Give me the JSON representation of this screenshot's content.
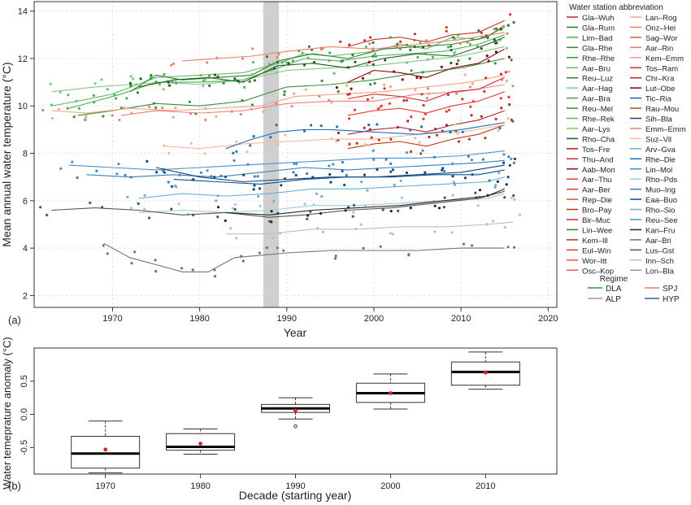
{
  "figure": {
    "panel_a_tag": "(a)",
    "panel_b_tag": "(b)"
  },
  "chart_data": [
    {
      "type": "line",
      "panel": "(a)",
      "xlabel": "Year",
      "ylabel": "Mean annual water temperature (°C)",
      "xlim": [
        1961,
        2021
      ],
      "ylim": [
        1.5,
        14.4
      ],
      "x_ticks": [
        1970,
        1980,
        1990,
        2000,
        2010,
        2020
      ],
      "y_ticks": [
        2,
        4,
        6,
        8,
        10,
        12,
        14
      ],
      "grid": true,
      "shaded_band": [
        1987.3,
        1989.1
      ],
      "legend_title": "Water station abbreviation",
      "legend_col1": [
        "Gla–Wuh",
        "Gla–Rum",
        "Lim–Bad",
        "Gla–Rhe",
        "Rhe–Rhe",
        "Aar–Bru",
        "Reu–Luz",
        "Aar–Hag",
        "Aar–Bra",
        "Reu–Mel",
        "Rhe–Rek",
        "Aar–Lys",
        "Rho–Cha",
        "Tos–Fre",
        "Thu–And",
        "Aab–Mon",
        "Aar–Thu",
        "Aar–Ber",
        "Rep–Die",
        "Bro–Pay",
        "Bir–Muc",
        "Lin–Wee",
        "Kem–Ill",
        "Eul–Win",
        "Wor–Itt",
        "Osc–Kop"
      ],
      "legend_col1_colors": [
        "#c62828",
        "#1b7a2f",
        "#4caf50",
        "#2e8b3e",
        "#3a8f3a",
        "#66bb6a",
        "#2e7d32",
        "#81c784",
        "#43a047",
        "#388e3c",
        "#5cb85c",
        "#8bc34a",
        "#1b5e20",
        "#b71c1c",
        "#c0392b",
        "#8b1a1a",
        "#e53935",
        "#d84315",
        "#f44336",
        "#bf360c",
        "#d32f2f",
        "#2e7d32",
        "#c62828",
        "#e53935",
        "#f4511e",
        "#ef5350"
      ],
      "legend_col2": [
        "Lan–Rog",
        "Onz–Hei",
        "Sag–Wor",
        "Aar–Rin",
        "Kem–Emm",
        "Tos–Ram",
        "Chr–Kra",
        "Lut–Obe",
        "Tic–Ria",
        "Rau–Mou",
        "Sih–Bla",
        "Emm–Emm",
        "Suz–Vil",
        "Arv–Gva",
        "Rhe–Die",
        "Lin–Mol",
        "Rho–Pds",
        "Muo–Ing",
        "Eaa–Buo",
        "Rho–Sio",
        "Reu–See",
        "Kan–Fru",
        "Aar–Bri",
        "Lus–Gst",
        "Inn–Sch",
        "Lon–Bla"
      ],
      "legend_col2_colors": [
        "#f4a582",
        "#e8806a",
        "#d6604d",
        "#e57373",
        "#ef9a9a",
        "#c0392b",
        "#b22222",
        "#8b0000",
        "#1f5fa8",
        "#a0522d",
        "#1c3f6e",
        "#f08080",
        "#f5b7a0",
        "#6baed6",
        "#2171b5",
        "#4292c6",
        "#9ecae1",
        "#3182bd",
        "#08519c",
        "#6baed6",
        "#4a90c8",
        "#252525",
        "#737373",
        "#525252",
        "#bdbdbd",
        "#969696"
      ],
      "regime_title": "Regime",
      "regimes": [
        {
          "name": "DLA",
          "color": "#2ca02c"
        },
        {
          "name": "SPJ",
          "color": "#f07b63"
        },
        {
          "name": "ALP",
          "color": "#999999"
        },
        {
          "name": "HYP",
          "color": "#2166ac"
        }
      ],
      "series": [
        {
          "regime": "DLA",
          "color": "#66bb6a",
          "x": [
            1963,
            1966,
            1970,
            1975,
            1980,
            1985,
            1989,
            1992,
            1995,
            2000,
            2003,
            2006,
            2009,
            2012,
            2015
          ],
          "y": [
            10.0,
            10.2,
            10.5,
            11.2,
            11.3,
            11.4,
            11.8,
            12.2,
            12.1,
            12.3,
            12.6,
            12.4,
            12.9,
            12.8,
            13.3
          ]
        },
        {
          "regime": "DLA",
          "color": "#4caf50",
          "x": [
            1965,
            1968,
            1971,
            1975,
            1980,
            1985,
            1989,
            1992,
            1996,
            2000,
            2004,
            2008,
            2012,
            2015
          ],
          "y": [
            9.9,
            10.2,
            10.5,
            11.0,
            11.0,
            11.1,
            11.6,
            12.0,
            11.9,
            12.1,
            12.2,
            12.3,
            12.6,
            13.0
          ]
        },
        {
          "regime": "DLA",
          "color": "#2e7d32",
          "x": [
            1972,
            1975,
            1978,
            1982,
            1986,
            1989,
            1993,
            1997,
            2001,
            2005,
            2009,
            2013,
            2015
          ],
          "y": [
            10.6,
            11.3,
            11.1,
            11.2,
            11.3,
            11.9,
            12.2,
            12.0,
            12.4,
            12.5,
            12.6,
            12.9,
            13.4
          ]
        },
        {
          "regime": "DLA",
          "color": "#81c784",
          "x": [
            1963,
            1968,
            1972,
            1976,
            1980,
            1985,
            1990,
            1995,
            2000,
            2005,
            2010,
            2015
          ],
          "y": [
            10.6,
            10.8,
            10.9,
            11.0,
            10.9,
            11.1,
            11.5,
            11.6,
            11.7,
            11.9,
            12.1,
            12.5
          ]
        },
        {
          "regime": "DLA",
          "color": "#388e3c",
          "x": [
            1966,
            1970,
            1975,
            1980,
            1985,
            1990,
            1995,
            2000,
            2005,
            2010,
            2015
          ],
          "y": [
            9.6,
            9.8,
            10.1,
            10.0,
            10.2,
            10.8,
            10.9,
            11.1,
            11.4,
            11.6,
            12.0
          ]
        },
        {
          "regime": "DLA",
          "color": "#1b5e20",
          "x": [
            1973,
            1977,
            1981,
            1985,
            1989,
            1993,
            1997,
            2001,
            2005,
            2009,
            2013,
            2015
          ],
          "y": [
            10.8,
            11.1,
            11.2,
            11.0,
            11.7,
            11.8,
            11.6,
            12.0,
            12.2,
            12.1,
            12.6,
            12.9
          ]
        },
        {
          "regime": "SPJ",
          "color": "#f4a582",
          "x": [
            1963,
            1967,
            1972,
            1977,
            1982,
            1987,
            1991,
            1996,
            2001,
            2006,
            2011,
            2015
          ],
          "y": [
            9.8,
            9.7,
            9.9,
            9.8,
            9.9,
            10.0,
            10.4,
            10.5,
            10.6,
            10.8,
            11.0,
            11.3
          ]
        },
        {
          "regime": "SPJ",
          "color": "#e8806a",
          "x": [
            1978,
            1982,
            1986,
            1990,
            1995,
            2000,
            2005,
            2010,
            2015
          ],
          "y": [
            11.9,
            12.0,
            12.1,
            12.3,
            12.5,
            12.4,
            12.6,
            12.8,
            13.1
          ]
        },
        {
          "regime": "SPJ",
          "color": "#f08080",
          "x": [
            1971,
            1975,
            1980,
            1985,
            1990,
            1995,
            2000,
            2005,
            2010,
            2015
          ],
          "y": [
            9.6,
            9.8,
            9.7,
            9.8,
            10.1,
            10.2,
            10.2,
            10.5,
            10.6,
            10.9
          ]
        },
        {
          "regime": "SPJ",
          "color": "#c0392b",
          "x": [
            1997,
            2000,
            2003,
            2006,
            2009,
            2012,
            2015
          ],
          "y": [
            12.5,
            12.8,
            12.9,
            12.7,
            13.0,
            13.1,
            13.6
          ]
        },
        {
          "regime": "SPJ",
          "color": "#8b0000",
          "x": [
            1997,
            2000,
            2003,
            2006,
            2009,
            2012,
            2015
          ],
          "y": [
            11.0,
            11.5,
            11.4,
            11.2,
            11.6,
            11.8,
            12.4
          ]
        },
        {
          "regime": "SPJ",
          "color": "#d32f2f",
          "x": [
            1997,
            2000,
            2003,
            2006,
            2009,
            2012,
            2015
          ],
          "y": [
            10.3,
            10.5,
            10.4,
            10.2,
            10.6,
            10.7,
            11.2
          ]
        },
        {
          "regime": "SPJ",
          "color": "#e53935",
          "x": [
            1997,
            2000,
            2003,
            2006,
            2009,
            2012,
            2015
          ],
          "y": [
            9.6,
            9.8,
            9.9,
            9.7,
            10.0,
            10.2,
            10.6
          ]
        },
        {
          "regime": "SPJ",
          "color": "#b22222",
          "x": [
            1997,
            2000,
            2003,
            2006,
            2009,
            2012,
            2015
          ],
          "y": [
            8.8,
            9.0,
            9.1,
            8.9,
            9.2,
            9.4,
            9.8
          ]
        },
        {
          "regime": "SPJ",
          "color": "#bf360c",
          "x": [
            1997,
            2000,
            2003,
            2006,
            2009,
            2012,
            2015
          ],
          "y": [
            8.2,
            8.4,
            8.5,
            8.3,
            8.6,
            8.8,
            9.2
          ]
        },
        {
          "regime": "SPJ",
          "color": "#f5b7a0",
          "x": [
            1976,
            1980,
            1985,
            1990,
            1995,
            2000,
            2005,
            2010,
            2015
          ],
          "y": [
            8.3,
            8.2,
            8.4,
            8.5,
            8.6,
            8.6,
            8.8,
            8.9,
            9.2
          ]
        },
        {
          "regime": "HYP",
          "color": "#2171b5",
          "x": [
            1983,
            1986,
            1989,
            1992,
            1995,
            2000,
            2005,
            2010,
            2015
          ],
          "y": [
            8.2,
            8.6,
            8.9,
            9.0,
            9.0,
            8.9,
            8.8,
            9.0,
            9.3
          ]
        },
        {
          "regime": "HYP",
          "color": "#4a90c8",
          "x": [
            1965,
            1970,
            1975,
            1980,
            1985,
            1990,
            1995,
            2000,
            2005,
            2010,
            2015
          ],
          "y": [
            7.5,
            7.4,
            7.3,
            7.4,
            7.5,
            7.6,
            7.7,
            7.8,
            7.8,
            7.9,
            8.1
          ]
        },
        {
          "regime": "HYP",
          "color": "#3182bd",
          "x": [
            1967,
            1972,
            1977,
            1982,
            1987,
            1992,
            1997,
            2002,
            2007,
            2012,
            2015
          ],
          "y": [
            7.1,
            7.0,
            7.1,
            7.0,
            7.2,
            7.4,
            7.3,
            7.4,
            7.5,
            7.6,
            7.7
          ]
        },
        {
          "regime": "HYP",
          "color": "#1c3f6e",
          "x": [
            1975,
            1980,
            1985,
            1990,
            1995,
            2000,
            2005,
            2010,
            2015
          ],
          "y": [
            7.4,
            7.0,
            6.8,
            6.9,
            7.0,
            7.0,
            7.1,
            7.2,
            7.5
          ]
        },
        {
          "regime": "HYP",
          "color": "#08519c",
          "x": [
            1977,
            1982,
            1987,
            1992,
            1997,
            2002,
            2007,
            2012,
            2015
          ],
          "y": [
            6.9,
            6.8,
            6.7,
            6.9,
            7.0,
            7.0,
            7.1,
            7.1,
            7.3
          ]
        },
        {
          "regime": "HYP",
          "color": "#6baed6",
          "x": [
            1973,
            1978,
            1983,
            1988,
            1993,
            1998,
            2003,
            2008,
            2013,
            2015
          ],
          "y": [
            6.1,
            6.3,
            6.2,
            6.3,
            6.5,
            6.5,
            6.6,
            6.7,
            6.8,
            7.0
          ]
        },
        {
          "regime": "HYP",
          "color": "#9ecae1",
          "x": [
            1973,
            1978,
            1983,
            1988,
            1993,
            1998,
            2003,
            2008,
            2013,
            2015
          ],
          "y": [
            5.5,
            5.6,
            5.5,
            5.6,
            5.8,
            5.8,
            5.9,
            6.0,
            6.1,
            6.3
          ]
        },
        {
          "regime": "ALP",
          "color": "#525252",
          "x": [
            1963,
            1968,
            1973,
            1978,
            1983,
            1988,
            1992,
            1997,
            2002,
            2007,
            2012,
            2015
          ],
          "y": [
            5.6,
            5.7,
            5.6,
            5.4,
            5.5,
            5.3,
            5.4,
            5.6,
            5.7,
            5.9,
            6.1,
            6.4
          ]
        },
        {
          "regime": "ALP",
          "color": "#252525",
          "x": [
            1983,
            1988,
            1993,
            1998,
            2003,
            2008,
            2013,
            2015
          ],
          "y": [
            5.5,
            5.4,
            5.6,
            5.7,
            5.8,
            6.0,
            6.2,
            6.5
          ]
        },
        {
          "regime": "ALP",
          "color": "#bdbdbd",
          "x": [
            1983,
            1988,
            1993,
            1998,
            2003,
            2008,
            2013,
            2016
          ],
          "y": [
            4.6,
            4.6,
            4.8,
            4.8,
            4.9,
            4.9,
            5.0,
            5.1
          ]
        },
        {
          "regime": "ALP",
          "color": "#737373",
          "x": [
            1969,
            1972,
            1975,
            1978,
            1981,
            1984,
            1987,
            1990,
            1995,
            2000,
            2005,
            2010,
            2015
          ],
          "y": [
            4.2,
            3.6,
            3.3,
            3.0,
            3.0,
            3.6,
            3.7,
            3.8,
            3.9,
            3.9,
            3.9,
            4.0,
            4.0
          ]
        }
      ]
    },
    {
      "type": "box",
      "panel": "(b)",
      "xlabel": "Decade (starting year)",
      "ylabel": "Water temeprature anomaly (°C)",
      "ylim": [
        -0.9,
        1.0
      ],
      "y_ticks": [
        -0.5,
        0.0,
        0.5
      ],
      "categories": [
        "1970",
        "1980",
        "1990",
        "2000",
        "2010"
      ],
      "boxes": [
        {
          "min": -0.88,
          "q1": -0.81,
          "median": -0.59,
          "q3": -0.33,
          "max": -0.1,
          "mean": -0.53,
          "outliers": []
        },
        {
          "min": -0.6,
          "q1": -0.54,
          "median": -0.49,
          "q3": -0.29,
          "max": -0.22,
          "mean": -0.44,
          "outliers": []
        },
        {
          "min": -0.07,
          "q1": 0.03,
          "median": 0.09,
          "q3": 0.15,
          "max": 0.25,
          "mean": 0.06,
          "outliers": [
            -0.18
          ]
        },
        {
          "min": 0.08,
          "q1": 0.18,
          "median": 0.32,
          "q3": 0.47,
          "max": 0.61,
          "mean": 0.32,
          "outliers": []
        },
        {
          "min": 0.38,
          "q1": 0.44,
          "median": 0.64,
          "q3": 0.79,
          "max": 0.94,
          "mean": 0.63,
          "outliers": []
        }
      ]
    }
  ]
}
